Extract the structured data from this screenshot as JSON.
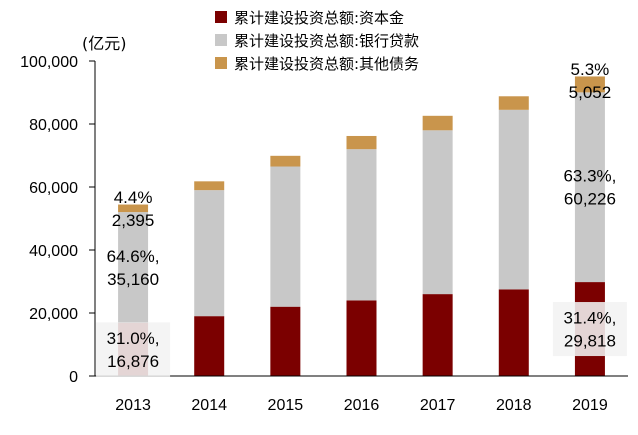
{
  "chart_data": {
    "type": "bar",
    "stacked": true,
    "unit_label": "(亿元)",
    "categories": [
      "2013",
      "2014",
      "2015",
      "2016",
      "2017",
      "2018",
      "2019"
    ],
    "series": [
      {
        "name": "累计建设投资总额:资本金",
        "color": "#7B0000",
        "values": [
          16876,
          19000,
          22000,
          24000,
          26000,
          27500,
          29818
        ]
      },
      {
        "name": "累计建设投资总额:银行贷款",
        "color": "#C8C8C8",
        "values": [
          35160,
          40000,
          44500,
          48000,
          52000,
          57000,
          60226
        ]
      },
      {
        "name": "累计建设投资总额:其他债务",
        "color": "#C9954C",
        "values": [
          2395,
          2800,
          3400,
          4200,
          4600,
          4300,
          5052
        ]
      }
    ],
    "ylim": [
      0,
      100000
    ],
    "yticks": [
      "0",
      "20,000",
      "40,000",
      "60,000",
      "80,000",
      "100,000"
    ],
    "legend_position": "top",
    "annotations": [
      {
        "category": "2013",
        "series": 0,
        "lines": [
          "31.0%,",
          "16,876"
        ],
        "box": true
      },
      {
        "category": "2013",
        "series": 1,
        "lines": [
          "64.6%,",
          "35,160"
        ],
        "box": false
      },
      {
        "category": "2013",
        "series": 2,
        "lines": [
          "4.4%",
          "2,395"
        ],
        "box": false
      },
      {
        "category": "2019",
        "series": 0,
        "lines": [
          "31.4%,",
          "29,818"
        ],
        "box": true
      },
      {
        "category": "2019",
        "series": 1,
        "lines": [
          "63.3%,",
          "60,226"
        ],
        "box": false
      },
      {
        "category": "2019",
        "series": 2,
        "lines": [
          "5.3%",
          "5,052"
        ],
        "box": false
      }
    ]
  }
}
